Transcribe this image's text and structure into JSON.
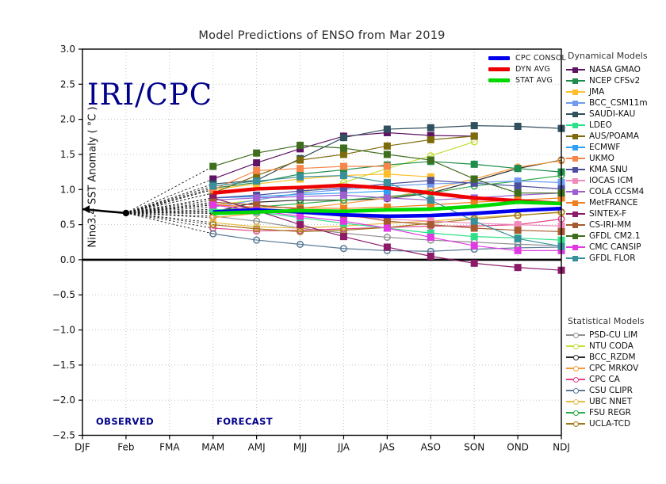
{
  "chart_data": {
    "type": "line",
    "title": "Model Predictions of ENSO from Mar 2019",
    "watermark": "IRI/CPC",
    "ylabel": "Nino3.4 SST Anomaly ( °C )",
    "xlabel": "",
    "observed_label": "OBSERVED",
    "forecast_label": "FORECAST",
    "legend_dynamical_title": "Dynamical Models",
    "legend_statistical_title": "Statistical Models",
    "x_categories": [
      "DJF",
      "Feb",
      "FMA",
      "MAM",
      "AMJ",
      "MJJ",
      "JJA",
      "JAS",
      "ASO",
      "SON",
      "OND",
      "NDJ"
    ],
    "ylim": [
      -2.5,
      3.0
    ],
    "ytick_step": 0.5,
    "grid": true,
    "forecast_start_index": 3,
    "observed": {
      "x": [
        "DJF",
        "Feb"
      ],
      "values": [
        0.72,
        0.665
      ],
      "color": "#000000"
    },
    "averages": [
      {
        "name": "CPC CONSOL",
        "color": "#0000ee",
        "values": [
          0.68,
          0.71,
          0.68,
          0.64,
          0.62,
          0.63,
          0.66,
          0.7,
          0.73
        ]
      },
      {
        "name": "DYN AVG",
        "color": "#ee0000",
        "values": [
          0.95,
          1.01,
          1.03,
          1.06,
          1.02,
          0.95,
          0.88,
          0.84,
          0.8
        ]
      },
      {
        "name": "STAT AVG",
        "color": "#00d900",
        "values": [
          0.66,
          0.68,
          0.7,
          0.69,
          0.71,
          0.72,
          0.76,
          0.82,
          0.8
        ]
      }
    ],
    "dynamical_models": [
      {
        "name": "NASA GMAO",
        "color": "#5e1365",
        "values": [
          1.15,
          1.38,
          1.58,
          1.76,
          1.81,
          1.77,
          1.76,
          null,
          null
        ]
      },
      {
        "name": "NCEP CFSv2",
        "color": "#1e8c4a",
        "values": [
          1.02,
          1.1,
          1.22,
          1.28,
          1.35,
          1.4,
          1.36,
          1.3,
          1.25
        ]
      },
      {
        "name": "JMA",
        "color": "#fdbe2a",
        "values": [
          1.0,
          1.08,
          1.15,
          1.2,
          1.22,
          1.18,
          null,
          null,
          null
        ]
      },
      {
        "name": "BCC_CSM11m",
        "color": "#6e9bf0",
        "values": [
          0.75,
          0.85,
          0.95,
          1.0,
          1.05,
          1.08,
          1.1,
          1.12,
          1.1
        ]
      },
      {
        "name": "SAUDI-KAU",
        "color": "#31505e",
        "values": [
          1.08,
          1.13,
          1.44,
          1.74,
          1.86,
          1.88,
          1.91,
          1.9,
          1.87
        ]
      },
      {
        "name": "LDEO",
        "color": "#2ee08a",
        "values": [
          0.72,
          0.68,
          0.6,
          0.52,
          0.45,
          0.38,
          0.33,
          0.31,
          0.28
        ]
      },
      {
        "name": "AUS/POAMA",
        "color": "#7d6a0a",
        "values": [
          0.95,
          1.2,
          1.42,
          1.5,
          1.62,
          1.71,
          1.76,
          null,
          null
        ]
      },
      {
        "name": "ECMWF",
        "color": "#2e9ff2",
        "values": [
          0.88,
          0.9,
          0.93,
          0.95,
          0.98,
          null,
          null,
          null,
          null
        ]
      },
      {
        "name": "UKMO",
        "color": "#f8854a",
        "values": [
          1.0,
          1.27,
          1.3,
          1.33,
          1.33,
          null,
          null,
          null,
          null
        ]
      },
      {
        "name": "KMA SNU",
        "color": "#4c4f9e",
        "values": [
          0.88,
          0.92,
          0.98,
          1.02,
          1.08,
          1.13,
          1.09,
          1.05,
          1.01
        ]
      },
      {
        "name": "IOCAS ICM",
        "color": "#f08cbb",
        "values": [
          0.8,
          0.73,
          0.68,
          0.62,
          0.58,
          0.55,
          0.52,
          0.5,
          0.48
        ]
      },
      {
        "name": "COLA CCSM4",
        "color": "#9f5fd0",
        "values": [
          0.85,
          0.88,
          0.9,
          0.92,
          0.88,
          0.85,
          0.88,
          0.92,
          0.95
        ]
      },
      {
        "name": "MetFRANCE",
        "color": "#f07f1f",
        "values": [
          0.78,
          0.75,
          0.74,
          0.73,
          0.75,
          0.78,
          0.82,
          0.85,
          0.88
        ]
      },
      {
        "name": "SINTEX-F",
        "color": "#8c1a68",
        "values": [
          0.88,
          0.7,
          0.5,
          0.33,
          0.18,
          0.05,
          -0.05,
          -0.11,
          -0.15
        ]
      },
      {
        "name": "CS-IRI-MM",
        "color": "#a65a2e",
        "values": [
          0.82,
          0.78,
          0.72,
          0.65,
          0.55,
          0.5,
          0.45,
          0.42,
          0.4
        ]
      },
      {
        "name": "GFDL CM2.1",
        "color": "#3f6d1e",
        "values": [
          1.33,
          1.52,
          1.63,
          1.59,
          1.5,
          1.42,
          1.15,
          0.95,
          0.95
        ]
      },
      {
        "name": "CMC CANSIP",
        "color": "#e23ae2",
        "values": [
          0.78,
          0.7,
          0.62,
          0.55,
          0.45,
          0.32,
          0.2,
          0.13,
          0.13
        ]
      },
      {
        "name": "GFDL FLOR",
        "color": "#38909c",
        "values": [
          1.05,
          1.12,
          1.18,
          1.2,
          1.1,
          0.85,
          0.55,
          0.3,
          0.19
        ]
      }
    ],
    "statistical_models": [
      {
        "name": "PSD-CU LIM",
        "color": "#909090",
        "values": [
          0.62,
          0.55,
          0.45,
          0.38,
          0.32,
          0.28,
          0.25,
          0.22,
          0.2
        ]
      },
      {
        "name": "NTU CODA",
        "color": "#c3e03a",
        "values": [
          0.78,
          0.85,
          0.95,
          1.1,
          1.3,
          1.48,
          1.68,
          null,
          null
        ]
      },
      {
        "name": "BCC_RZDM",
        "color": "#2a2a2a",
        "values": [
          0.68,
          0.82,
          0.85,
          0.85,
          0.87,
          0.95,
          1.12,
          1.3,
          1.42
        ]
      },
      {
        "name": "CPC MRKOV",
        "color": "#f59a3c",
        "values": [
          0.6,
          0.66,
          0.73,
          0.8,
          0.88,
          1.0,
          1.15,
          1.32,
          1.41
        ]
      },
      {
        "name": "CPC CA",
        "color": "#e0458a",
        "values": [
          0.45,
          0.41,
          0.42,
          0.44,
          0.46,
          0.48,
          0.48,
          0.5,
          0.58
        ]
      },
      {
        "name": "CSU CLIPR",
        "color": "#5a7a96",
        "values": [
          0.37,
          0.28,
          0.22,
          0.16,
          0.13,
          0.12,
          0.15,
          0.17,
          0.18
        ]
      },
      {
        "name": "UBC NNET",
        "color": "#e8bc48",
        "values": [
          0.53,
          0.47,
          0.45,
          0.48,
          0.52,
          0.55,
          0.6,
          0.64,
          0.67
        ]
      },
      {
        "name": "FSU REGR",
        "color": "#2eaa46",
        "values": [
          0.7,
          0.75,
          0.8,
          0.85,
          0.9,
          0.95,
          1.05,
          1.12,
          1.2
        ]
      },
      {
        "name": "UCLA-TCD",
        "color": "#a07818",
        "values": [
          0.5,
          0.44,
          0.4,
          0.42,
          0.46,
          0.52,
          0.58,
          0.63,
          0.68
        ]
      }
    ],
    "colors": {
      "navy_annotation": "#00008b",
      "grid": "#bdbdbd",
      "axis": "#000000"
    }
  }
}
